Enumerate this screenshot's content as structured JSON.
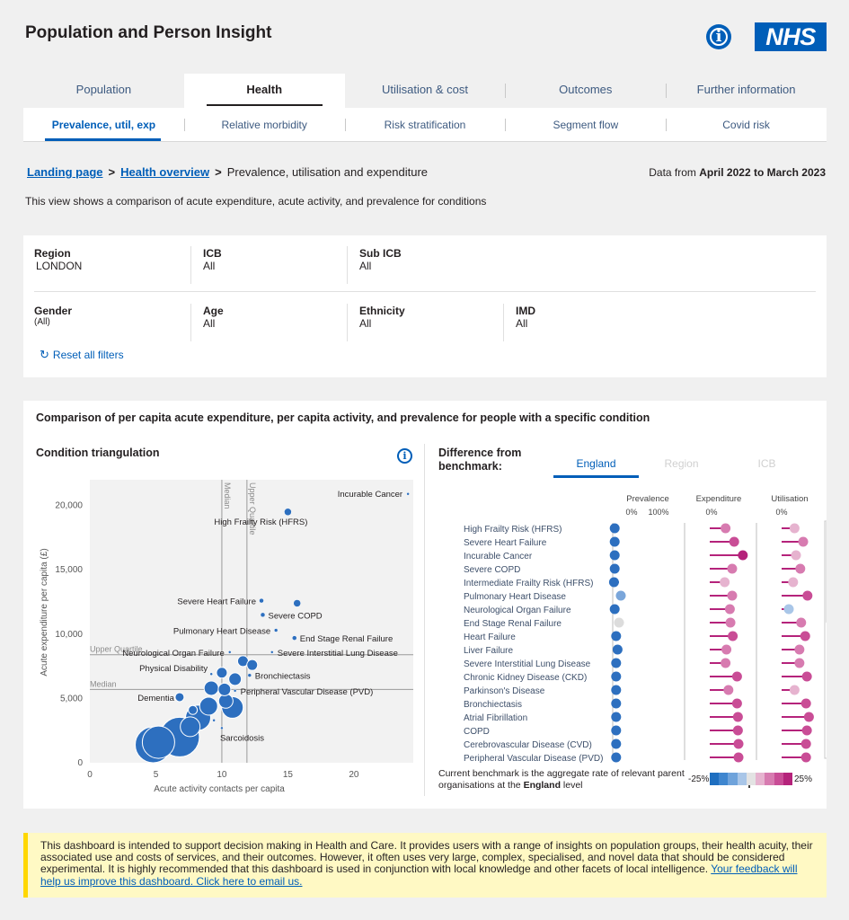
{
  "header": {
    "title": "Population and Person Insight",
    "info_glyph": "i",
    "logo_text": "NHS"
  },
  "main_tabs": [
    {
      "label": "Population",
      "active": false
    },
    {
      "label": "Health",
      "active": true
    },
    {
      "label": "Utilisation & cost",
      "active": false
    },
    {
      "label": "Outcomes",
      "active": false
    },
    {
      "label": "Further information",
      "active": false
    }
  ],
  "sub_tabs": [
    {
      "label": "Prevalence, util, exp",
      "active": true
    },
    {
      "label": "Relative morbidity",
      "active": false
    },
    {
      "label": "Risk stratification",
      "active": false
    },
    {
      "label": "Segment flow",
      "active": false
    },
    {
      "label": "Covid risk",
      "active": false
    }
  ],
  "breadcrumb": {
    "landing": "Landing page",
    "overview": "Health overview",
    "sep": ">",
    "current": "Prevalence, utilisation and expenditure"
  },
  "date_range": {
    "prefix": "Data from",
    "range": "April 2022 to March 2023"
  },
  "description": "This view shows a comparison of acute expenditure, acute activity, and prevalence for conditions",
  "filters": {
    "region": {
      "label": "Region",
      "value": "LONDON"
    },
    "icb": {
      "label": "ICB",
      "value": "All"
    },
    "sub_icb": {
      "label": "Sub ICB",
      "value": "All"
    },
    "gender": {
      "label": "Gender",
      "value": "(All)"
    },
    "age": {
      "label": "Age",
      "value": "All"
    },
    "ethnicity": {
      "label": "Ethnicity",
      "value": "All"
    },
    "imd": {
      "label": "IMD",
      "value": "All"
    },
    "reset_label": "Reset all filters"
  },
  "panel": {
    "title": "Comparison of per capita acute expenditure, per capita activity, and prevalence for people with a specific condition",
    "left_title": "Condition triangulation",
    "right_title_line1": "Difference from",
    "right_title_line2": "benchmark:",
    "benchmark_tabs": [
      {
        "label": "England",
        "active": true
      },
      {
        "label": "Region",
        "active": false
      },
      {
        "label": "ICB",
        "active": false
      }
    ],
    "benchmark_note_pre": "Current benchmark is the aggregate rate of relevant parent organisations at the ",
    "benchmark_note_bold": "England",
    "benchmark_note_post": " level",
    "legend_low": "-25%",
    "legend_high": "25%",
    "legend_colors": [
      "#1f6fc0",
      "#3f86cf",
      "#6fa3db",
      "#a9c6e8",
      "#e3e3e3",
      "#e6b3cf",
      "#d77bb0",
      "#c94d96",
      "#b5237b"
    ]
  },
  "chart_data": [
    {
      "type": "scatter",
      "title": "Condition triangulation",
      "xlabel": "Acute activity contacts per capita",
      "ylabel": "Acute expenditure per capita (£)",
      "xlim": [
        0,
        24.5
      ],
      "ylim": [
        0,
        22000
      ],
      "x_ticks": [
        0,
        5,
        10,
        15,
        20
      ],
      "y_ticks": [
        0,
        5000,
        10000,
        15000,
        20000
      ],
      "y_tick_labels": [
        "0",
        "5,000",
        "10,000",
        "15,000",
        "20,000"
      ],
      "reference_lines": [
        {
          "axis": "x",
          "label": "Median",
          "value": 10
        },
        {
          "axis": "x",
          "label": "Upper Quartile",
          "value": 11.9
        },
        {
          "axis": "y",
          "label": "Median",
          "value": 5700
        },
        {
          "axis": "y",
          "label": "Upper Quartile",
          "value": 8400
        }
      ],
      "color": "#2d6fbf",
      "points": [
        {
          "label": "Incurable Cancer",
          "x": 24.1,
          "y": 20900,
          "size": 1.5
        },
        {
          "label": "High Frailty Risk (HFRS)",
          "x": 15.0,
          "y": 19500,
          "size": 4
        },
        {
          "label": "Severe Heart Failure",
          "x": 13.0,
          "y": 12600,
          "size": 2.5
        },
        {
          "label": "",
          "x": 15.7,
          "y": 12400,
          "size": 4
        },
        {
          "label": "Severe COPD",
          "x": 13.1,
          "y": 11500,
          "size": 2.5
        },
        {
          "label": "Pulmonary Heart Disease",
          "x": 14.1,
          "y": 10300,
          "size": 2
        },
        {
          "label": "End Stage Renal Failure",
          "x": 15.5,
          "y": 9700,
          "size": 2.5
        },
        {
          "label": "Neurological Organ Failure",
          "x": 10.6,
          "y": 8600,
          "size": 1.5
        },
        {
          "label": "Severe Interstitial Lung Disease",
          "x": 13.8,
          "y": 8600,
          "size": 1.5
        },
        {
          "label": "",
          "x": 11.6,
          "y": 7900,
          "size": 6
        },
        {
          "label": "",
          "x": 12.3,
          "y": 7600,
          "size": 6
        },
        {
          "label": "Physical Disability",
          "x": 9.2,
          "y": 6900,
          "size": 1.5
        },
        {
          "label": "Bronchiectasis",
          "x": 12.1,
          "y": 6800,
          "size": 2
        },
        {
          "label": "",
          "x": 10.0,
          "y": 7000,
          "size": 6
        },
        {
          "label": "",
          "x": 11.0,
          "y": 6500,
          "size": 7
        },
        {
          "label": "",
          "x": 9.2,
          "y": 5800,
          "size": 8
        },
        {
          "label": "",
          "x": 10.2,
          "y": 5700,
          "size": 7
        },
        {
          "label": "Peripheral Vascular Disease (PVD)",
          "x": 11.0,
          "y": 5600,
          "size": 1.5
        },
        {
          "label": "Dementia",
          "x": 6.8,
          "y": 5100,
          "size": 5
        },
        {
          "label": "",
          "x": 10.3,
          "y": 4800,
          "size": 8
        },
        {
          "label": "",
          "x": 9.0,
          "y": 4400,
          "size": 10
        },
        {
          "label": "",
          "x": 10.8,
          "y": 4300,
          "size": 12
        },
        {
          "label": "",
          "x": 7.8,
          "y": 4100,
          "size": 5
        },
        {
          "label": "",
          "x": 8.2,
          "y": 3500,
          "size": 14
        },
        {
          "label": "",
          "x": 7.6,
          "y": 2800,
          "size": 11
        },
        {
          "label": "Sarcoidosis",
          "x": 10.0,
          "y": 2700,
          "size": 1.5
        },
        {
          "label": "",
          "x": 9.4,
          "y": 3300,
          "size": 1.5
        },
        {
          "label": "",
          "x": 6.8,
          "y": 2000,
          "size": 22
        },
        {
          "label": "",
          "x": 5.2,
          "y": 1600,
          "size": 18
        },
        {
          "label": "",
          "x": 4.8,
          "y": 1400,
          "size": 20
        }
      ]
    },
    {
      "type": "dot-lollipop",
      "title": "Difference from benchmark",
      "column_headers": [
        "Prevalence",
        "Expenditure",
        "Utilisation"
      ],
      "prevalence_ticks": [
        "0%",
        "100%"
      ],
      "expenditure_ticks": [
        "0%"
      ],
      "utilisation_ticks": [
        "0%"
      ],
      "rows": [
        {
          "label": "High Frailty Risk (HFRS)",
          "prevalence": -0.12,
          "expenditure": 0.55,
          "utilisation": 0.45
        },
        {
          "label": "Severe Heart Failure",
          "prevalence": -0.12,
          "expenditure": 0.85,
          "utilisation": 0.75
        },
        {
          "label": "Incurable Cancer",
          "prevalence": -0.12,
          "expenditure": 1.15,
          "utilisation": 0.5
        },
        {
          "label": "Severe COPD",
          "prevalence": -0.12,
          "expenditure": 0.78,
          "utilisation": 0.65
        },
        {
          "label": "Intermediate Frailty Risk (HFRS)",
          "prevalence": -0.14,
          "expenditure": 0.52,
          "utilisation": 0.4
        },
        {
          "label": "Pulmonary Heart Disease",
          "prevalence": 0.05,
          "expenditure": 0.78,
          "utilisation": 0.9
        },
        {
          "label": "Neurological Organ Failure",
          "prevalence": -0.12,
          "expenditure": 0.7,
          "utilisation": 0.25
        },
        {
          "label": "End Stage Renal Failure",
          "prevalence": 0.0,
          "expenditure": 0.72,
          "utilisation": 0.68
        },
        {
          "label": "Heart Failure",
          "prevalence": -0.08,
          "expenditure": 0.8,
          "utilisation": 0.82
        },
        {
          "label": "Liver Failure",
          "prevalence": -0.04,
          "expenditure": 0.58,
          "utilisation": 0.62
        },
        {
          "label": "Severe Interstitial Lung Disease",
          "prevalence": -0.08,
          "expenditure": 0.55,
          "utilisation": 0.62
        },
        {
          "label": "Chronic Kidney Disease (CKD)",
          "prevalence": -0.08,
          "expenditure": 0.95,
          "utilisation": 0.88
        },
        {
          "label": "Parkinson's Disease",
          "prevalence": -0.08,
          "expenditure": 0.65,
          "utilisation": 0.45
        },
        {
          "label": "Bronchiectasis",
          "prevalence": -0.08,
          "expenditure": 0.95,
          "utilisation": 0.85
        },
        {
          "label": "Atrial Fibrillation",
          "prevalence": -0.08,
          "expenditure": 0.98,
          "utilisation": 0.95
        },
        {
          "label": "COPD",
          "prevalence": -0.08,
          "expenditure": 0.98,
          "utilisation": 0.88
        },
        {
          "label": "Cerebrovascular Disease (CVD)",
          "prevalence": -0.08,
          "expenditure": 1.0,
          "utilisation": 0.85
        },
        {
          "label": "Peripheral Vascular Disease (PVD)",
          "prevalence": -0.08,
          "expenditure": 1.0,
          "utilisation": 0.85
        }
      ]
    }
  ],
  "disclaimer": {
    "text": "This dashboard is intended to support decision making in Health and Care. It provides users with a range of insights on population groups, their health acuity, their associated use and costs of services, and their outcomes. However, it often uses very large, complex, specialised, and novel data that should be considered experimental. It is highly recommended that this dashboard is used in conjunction with local knowledge and other facets of local intelligence. ",
    "link": "Your feedback will help us improve this dashboard. Click here to email us."
  }
}
